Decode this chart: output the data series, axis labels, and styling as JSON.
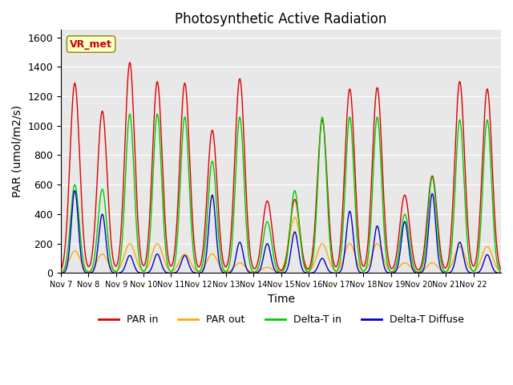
{
  "title": "Photosynthetic Active Radiation",
  "xlabel": "Time",
  "ylabel": "PAR (umol/m2/s)",
  "ylim": [
    0,
    1650
  ],
  "yticks": [
    0,
    200,
    400,
    600,
    800,
    1000,
    1200,
    1400,
    1600
  ],
  "legend_labels": [
    "PAR in",
    "PAR out",
    "Delta-T in",
    "Delta-T Diffuse"
  ],
  "legend_colors": [
    "#dd0000",
    "#ffaa00",
    "#00cc00",
    "#0000cc"
  ],
  "annotation_text": "VR_met",
  "annotation_color": "#cc0000",
  "annotation_bg": "#ffffcc",
  "background_color": "#e8e8e8",
  "n_days": 16,
  "points_per_day": 48,
  "color_par_in": "#dd0000",
  "color_par_out": "#ffaa00",
  "color_delta_t": "#00cc00",
  "color_delta_t_diff": "#0000cc",
  "day_labels": [
    "Nov 7",
    "Nov 8",
    "Nov 9",
    "Nov 10",
    "Nov 11",
    "Nov 12",
    "Nov 13",
    "Nov 14",
    "Nov 15",
    "Nov 16",
    "Nov 17",
    "Nov 18",
    "Nov 19",
    "Nov 20",
    "Nov 21",
    "Nov 22"
  ],
  "par_in_peaks": [
    1290,
    1100,
    1430,
    1300,
    1290,
    970,
    1320,
    490,
    500,
    1040,
    1250,
    1260,
    530,
    660,
    1300,
    1250
  ],
  "par_out_peaks": [
    150,
    130,
    200,
    200,
    130,
    130,
    70,
    40,
    380,
    200,
    200,
    200,
    70,
    70,
    180,
    180
  ],
  "delta_t_peaks": [
    600,
    570,
    1080,
    1080,
    1060,
    760,
    1060,
    350,
    560,
    1060,
    1060,
    1060,
    400,
    650,
    1040,
    1040
  ],
  "delta_t_diff_peaks": [
    560,
    400,
    120,
    130,
    120,
    530,
    210,
    200,
    280,
    100,
    420,
    320,
    350,
    540,
    210,
    125
  ]
}
